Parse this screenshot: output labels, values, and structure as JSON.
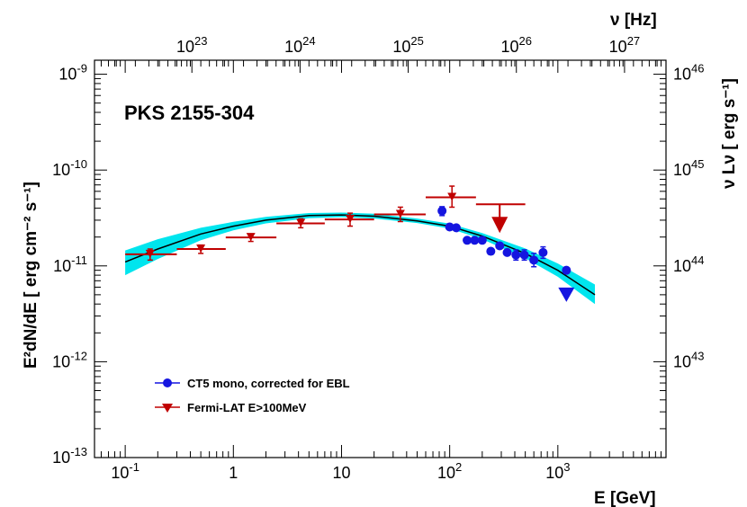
{
  "chart_data": {
    "type": "scatter",
    "title": "PKS 2155-304",
    "xlabel": "E [GeV]",
    "ylabel": "E²dN/dE [ erg cm⁻² s⁻¹]",
    "top_axis_label": "ν [Hz]",
    "right_axis_label": "ν Lν [ erg s⁻¹]",
    "x_scale": "log",
    "y_scale": "log",
    "xlim": [
      0.052,
      10000
    ],
    "ylim": [
      1e-13,
      1.4e-09
    ],
    "x_tick_labels": [
      "10⁻¹",
      "1",
      "10",
      "10²",
      "10³"
    ],
    "y_tick_labels": [
      "10⁻¹³",
      "10⁻¹²",
      "10⁻¹¹",
      "10⁻¹⁰",
      "10⁻⁹"
    ],
    "top_tick_labels": [
      "10²³",
      "10²⁴",
      "10²⁵",
      "10²⁶",
      "10²⁷"
    ],
    "right_tick_labels": [
      "10⁴³",
      "10⁴⁴",
      "10⁴⁵",
      "10⁴⁶"
    ],
    "top_axis_hz_per_gev": 2.418e+23,
    "right_axis_luminosity_per_flux": 1e+55,
    "legend_position": "bottom-left",
    "series": [
      {
        "name": "CT5 mono, corrected for EBL",
        "color": "#1515e0",
        "marker": "circle",
        "points": [
          {
            "x": 85,
            "y": 3.75e-11,
            "y_lo": 3.35e-11,
            "y_hi": 4.15e-11
          },
          {
            "x": 100,
            "y": 2.55e-11
          },
          {
            "x": 115,
            "y": 2.5e-11
          },
          {
            "x": 145,
            "y": 1.85e-11
          },
          {
            "x": 170,
            "y": 1.85e-11
          },
          {
            "x": 200,
            "y": 1.85e-11
          },
          {
            "x": 240,
            "y": 1.42e-11
          },
          {
            "x": 290,
            "y": 1.62e-11
          },
          {
            "x": 340,
            "y": 1.38e-11
          },
          {
            "x": 410,
            "y": 1.3e-11,
            "y_lo": 1.15e-11,
            "y_hi": 1.47e-11
          },
          {
            "x": 490,
            "y": 1.3e-11,
            "y_lo": 1.15e-11,
            "y_hi": 1.47e-11
          },
          {
            "x": 600,
            "y": 1.15e-11,
            "y_lo": 9.8e-12,
            "y_hi": 1.35e-11
          },
          {
            "x": 730,
            "y": 1.38e-11,
            "y_lo": 1.2e-11,
            "y_hi": 1.58e-11
          },
          {
            "x": 1200,
            "y": 9e-12
          }
        ],
        "upper_limits": [
          {
            "x": 1200,
            "y": 5e-12
          }
        ]
      },
      {
        "name": "Fermi-LAT E>100MeV",
        "color": "#c00000",
        "marker": "triangle-down",
        "points": [
          {
            "x": 0.17,
            "y": 1.32e-11,
            "x_lo": 0.1,
            "x_hi": 0.3,
            "y_lo": 1.15e-11,
            "y_hi": 1.5e-11
          },
          {
            "x": 0.5,
            "y": 1.5e-11,
            "x_lo": 0.3,
            "x_hi": 0.85,
            "y_lo": 1.35e-11,
            "y_hi": 1.65e-11
          },
          {
            "x": 1.45,
            "y": 1.98e-11,
            "x_lo": 0.85,
            "x_hi": 2.5,
            "y_lo": 1.8e-11,
            "y_hi": 2.15e-11
          },
          {
            "x": 4.2,
            "y": 2.78e-11,
            "x_lo": 2.5,
            "x_hi": 7.0,
            "y_lo": 2.5e-11,
            "y_hi": 3.1e-11
          },
          {
            "x": 12,
            "y": 3.05e-11,
            "x_lo": 7.0,
            "x_hi": 20,
            "y_lo": 2.6e-11,
            "y_hi": 3.55e-11
          },
          {
            "x": 35,
            "y": 3.45e-11,
            "x_lo": 20,
            "x_hi": 60,
            "y_lo": 2.9e-11,
            "y_hi": 4.1e-11
          },
          {
            "x": 105,
            "y": 5.2e-11,
            "x_lo": 60,
            "x_hi": 175,
            "y_lo": 4.1e-11,
            "y_hi": 6.8e-11
          }
        ],
        "upper_limits": [
          {
            "x": 290,
            "y": 4.4e-11,
            "x_lo": 175,
            "x_hi": 500
          }
        ]
      }
    ],
    "model_curve": {
      "color": "#000000",
      "band_color": "#00e5ee",
      "x": [
        0.1,
        0.2,
        0.5,
        1,
        2,
        5,
        10,
        20,
        50,
        100,
        200,
        500,
        1000,
        2200
      ],
      "y": [
        1.1e-11,
        1.5e-11,
        2.15e-11,
        2.6e-11,
        3e-11,
        3.35e-11,
        3.4e-11,
        3.3e-11,
        2.95e-11,
        2.6e-11,
        2.05e-11,
        1.35e-11,
        9e-12,
        5e-12
      ],
      "band_lo": [
        8e-12,
        1.18e-11,
        1.85e-11,
        2.35e-11,
        2.78e-11,
        3.15e-11,
        3.22e-11,
        3.12e-11,
        2.8e-11,
        2.45e-11,
        1.9e-11,
        1.2e-11,
        7.7e-12,
        4e-12
      ],
      "band_hi": [
        1.45e-11,
        1.9e-11,
        2.5e-11,
        2.88e-11,
        3.25e-11,
        3.56e-11,
        3.6e-11,
        3.5e-11,
        3.12e-11,
        2.76e-11,
        2.2e-11,
        1.52e-11,
        1.06e-11,
        6.4e-12
      ]
    }
  }
}
